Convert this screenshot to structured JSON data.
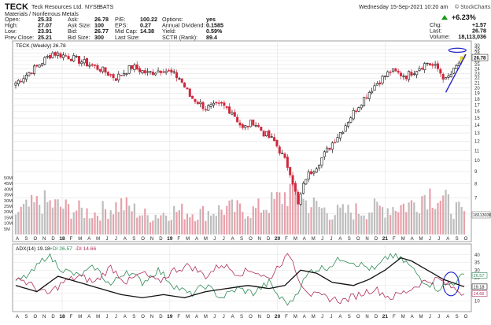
{
  "header": {
    "symbol": "TECK",
    "company": "Teck Resources Ltd.",
    "exchange": "NYSE",
    "exchange_tag": "BATS",
    "sector": "Materials / Nonferrous Metals",
    "datetime": "Wednesday  15-Sep-2021  10:20 am",
    "brand": "© StockCharts.com",
    "up_arrow_color": "#1a9a1a",
    "change_pct": "+6.23%",
    "stats_col1": [
      [
        "Open:",
        "25.33"
      ],
      [
        "High:",
        "27.07"
      ],
      [
        "Low:",
        "23.91"
      ],
      [
        "Prev Close:",
        "25.21"
      ]
    ],
    "stats_col2": [
      [
        "Ask:",
        "26.78"
      ],
      [
        "Ask Size:",
        "100"
      ],
      [
        "Bid:",
        "26.77"
      ],
      [
        "Bid Size:",
        "300"
      ]
    ],
    "stats_col3": [
      [
        "P/E:",
        "100.22"
      ],
      [
        "EPS:",
        "0.27"
      ],
      [
        "Mid Cap:",
        "14.38"
      ],
      [
        "Last Size:",
        ""
      ]
    ],
    "stats_col4": [
      [
        "Options:",
        "yes"
      ],
      [
        "Annual Dividend:",
        "0.1585"
      ],
      [
        "Yield:",
        "0.59%"
      ],
      [
        "SCTR (Rank):",
        "89.4"
      ]
    ],
    "stats_col5": [
      [
        "Chg:",
        "+1.57"
      ],
      [
        "Last:",
        "26.78"
      ],
      [
        "Volume:",
        "18,113,036"
      ]
    ]
  },
  "chart_data": [
    {
      "type": "candlestick",
      "title": "TECK (Weekly) 26.78",
      "volume_label": "Volume 18,113,036",
      "ylim": [
        5,
        30
      ],
      "y_ticks": [
        6,
        7,
        8,
        9,
        10,
        11,
        12,
        13,
        14,
        15,
        16,
        17,
        18,
        19,
        20,
        21,
        22,
        23,
        24,
        25,
        26,
        27,
        28,
        29,
        30
      ],
      "last_price_label": "26.78",
      "volume_last_label": "18113036",
      "volume_ticks": [
        "50M",
        "45M",
        "40M",
        "35M",
        "30M",
        "25M",
        "20M",
        "15M",
        "10M",
        "5M"
      ],
      "volume_max_m": 50,
      "up_color": "#111111",
      "down_color": "#d0283c",
      "vol_up_color": "#bdbdbd",
      "vol_down_color": "#e8a0aa",
      "annotation_colors": {
        "trendline": "#2222cc",
        "ellipse": "#2222cc",
        "highlight": "#f2e200"
      },
      "price_anchors": [
        [
          0,
          21.0
        ],
        [
          8,
          24.5
        ],
        [
          14,
          28.0
        ],
        [
          20,
          27.0
        ],
        [
          26,
          25.5
        ],
        [
          32,
          24.0
        ],
        [
          38,
          22.0
        ],
        [
          44,
          24.5
        ],
        [
          50,
          23.0
        ],
        [
          56,
          24.0
        ],
        [
          62,
          22.0
        ],
        [
          66,
          18.5
        ],
        [
          72,
          16.5
        ],
        [
          78,
          17.0
        ],
        [
          82,
          16.0
        ],
        [
          86,
          13.5
        ],
        [
          90,
          14.5
        ],
        [
          94,
          13.0
        ],
        [
          98,
          12.0
        ],
        [
          100,
          11.0
        ],
        [
          104,
          9.0
        ],
        [
          107,
          6.5
        ],
        [
          110,
          8.5
        ],
        [
          114,
          9.5
        ],
        [
          118,
          11.0
        ],
        [
          124,
          13.5
        ],
        [
          130,
          17.0
        ],
        [
          136,
          20.5
        ],
        [
          142,
          23.5
        ],
        [
          148,
          22.5
        ],
        [
          152,
          24.0
        ],
        [
          156,
          25.5
        ],
        [
          160,
          24.0
        ],
        [
          163,
          21.5
        ],
        [
          166,
          23.5
        ],
        [
          168,
          25.5
        ],
        [
          170,
          26.8
        ]
      ],
      "volume_anchors_m": [
        [
          0,
          20
        ],
        [
          10,
          30
        ],
        [
          20,
          24
        ],
        [
          30,
          20
        ],
        [
          40,
          28
        ],
        [
          50,
          17
        ],
        [
          60,
          22
        ],
        [
          70,
          20
        ],
        [
          80,
          24
        ],
        [
          90,
          22
        ],
        [
          98,
          30
        ],
        [
          104,
          40
        ],
        [
          110,
          30
        ],
        [
          120,
          20
        ],
        [
          130,
          22
        ],
        [
          140,
          25
        ],
        [
          150,
          28
        ],
        [
          156,
          40
        ],
        [
          160,
          35
        ],
        [
          166,
          25
        ],
        [
          170,
          18
        ]
      ],
      "x_month_labels": [
        "A",
        "S",
        "O",
        "N",
        "D",
        "18",
        "F",
        "M",
        "A",
        "M",
        "J",
        "J",
        "A",
        "S",
        "O",
        "N",
        "D",
        "19",
        "F",
        "M",
        "A",
        "M",
        "J",
        "J",
        "A",
        "S",
        "O",
        "N",
        "D",
        "20",
        "F",
        "M",
        "A",
        "M",
        "J",
        "J",
        "A",
        "S",
        "O",
        "N",
        "D",
        "21",
        "F",
        "M",
        "A",
        "M",
        "J",
        "J",
        "A",
        "S",
        "O"
      ]
    },
    {
      "type": "line",
      "title": "ADX(14) 19.18",
      "series": [
        {
          "name": "+DI",
          "legend": "+DI 26.57",
          "color": "#2e8b57",
          "anchors": [
            [
              0,
              22
            ],
            [
              6,
              28
            ],
            [
              12,
              40
            ],
            [
              18,
              30
            ],
            [
              24,
              26
            ],
            [
              30,
              32
            ],
            [
              36,
              20
            ],
            [
              42,
              30
            ],
            [
              48,
              22
            ],
            [
              54,
              30
            ],
            [
              60,
              20
            ],
            [
              66,
              14
            ],
            [
              72,
              20
            ],
            [
              78,
              12
            ],
            [
              84,
              18
            ],
            [
              90,
              15
            ],
            [
              96,
              22
            ],
            [
              100,
              12
            ],
            [
              104,
              8
            ],
            [
              108,
              20
            ],
            [
              112,
              30
            ],
            [
              118,
              32
            ],
            [
              124,
              38
            ],
            [
              130,
              34
            ],
            [
              136,
              30
            ],
            [
              142,
              40
            ],
            [
              148,
              35
            ],
            [
              154,
              24
            ],
            [
              160,
              18
            ],
            [
              166,
              22
            ],
            [
              170,
              26.57
            ]
          ]
        },
        {
          "name": "-DI",
          "legend": "-DI 14.66",
          "color": "#b03060",
          "anchors": [
            [
              0,
              26
            ],
            [
              6,
              20
            ],
            [
              12,
              14
            ],
            [
              18,
              22
            ],
            [
              24,
              26
            ],
            [
              30,
              22
            ],
            [
              36,
              32
            ],
            [
              42,
              22
            ],
            [
              48,
              28
            ],
            [
              54,
              22
            ],
            [
              60,
              30
            ],
            [
              66,
              33
            ],
            [
              72,
              26
            ],
            [
              78,
              34
            ],
            [
              84,
              28
            ],
            [
              90,
              30
            ],
            [
              96,
              24
            ],
            [
              100,
              34
            ],
            [
              104,
              40
            ],
            [
              108,
              22
            ],
            [
              112,
              14
            ],
            [
              118,
              12
            ],
            [
              124,
              10
            ],
            [
              130,
              14
            ],
            [
              136,
              18
            ],
            [
              142,
              12
            ],
            [
              148,
              16
            ],
            [
              154,
              22
            ],
            [
              160,
              24
            ],
            [
              166,
              18
            ],
            [
              170,
              14.66
            ]
          ]
        },
        {
          "name": "ADX",
          "legend": "ADX(14) 19.18",
          "color": "#111111",
          "anchors": [
            [
              0,
              20
            ],
            [
              8,
              16
            ],
            [
              16,
              26
            ],
            [
              24,
              22
            ],
            [
              32,
              18
            ],
            [
              40,
              14
            ],
            [
              48,
              12
            ],
            [
              56,
              14
            ],
            [
              64,
              12
            ],
            [
              72,
              16
            ],
            [
              80,
              18
            ],
            [
              88,
              20
            ],
            [
              96,
              18
            ],
            [
              102,
              20
            ],
            [
              108,
              30
            ],
            [
              114,
              28
            ],
            [
              120,
              22
            ],
            [
              128,
              20
            ],
            [
              134,
              24
            ],
            [
              140,
              30
            ],
            [
              146,
              38
            ],
            [
              150,
              36
            ],
            [
              156,
              30
            ],
            [
              162,
              24
            ],
            [
              170,
              19.18
            ]
          ]
        }
      ],
      "ylim": [
        5,
        45
      ],
      "y_ticks": [
        10,
        15,
        20,
        25,
        30,
        35,
        40
      ],
      "last_labels": [
        "26.57",
        "19.18",
        "14.66"
      ]
    }
  ]
}
